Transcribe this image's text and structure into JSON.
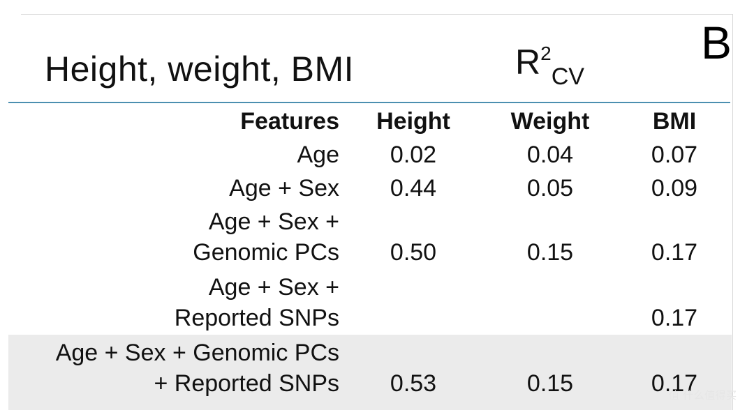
{
  "panel_label": "B",
  "title": "Height, weight, BMI",
  "metric": {
    "base": "R",
    "sup": "2",
    "sub": "CV"
  },
  "table": {
    "headers": [
      "Features",
      "Height",
      "Weight",
      "BMI"
    ],
    "rows": [
      {
        "feature_lines": [
          "Age"
        ],
        "height": "0.02",
        "weight": "0.04",
        "bmi": "0.07"
      },
      {
        "feature_lines": [
          "Age + Sex"
        ],
        "height": "0.44",
        "weight": "0.05",
        "bmi": "0.09"
      },
      {
        "feature_lines": [
          "Age + Sex +",
          "Genomic PCs"
        ],
        "height": "0.50",
        "weight": "0.15",
        "bmi": "0.17"
      },
      {
        "feature_lines": [
          "Age + Sex +",
          "Reported SNPs"
        ],
        "height": "",
        "weight": "",
        "bmi": "0.17"
      },
      {
        "feature_lines": [
          "Age + Sex + Genomic PCs",
          "+ Reported SNPs"
        ],
        "height": "0.53",
        "weight": "0.15",
        "bmi": "0.17"
      }
    ]
  },
  "watermark": "值 什么值得买",
  "colors": {
    "rule": "#4c8fb0",
    "highlight_row": "#ebebeb"
  }
}
